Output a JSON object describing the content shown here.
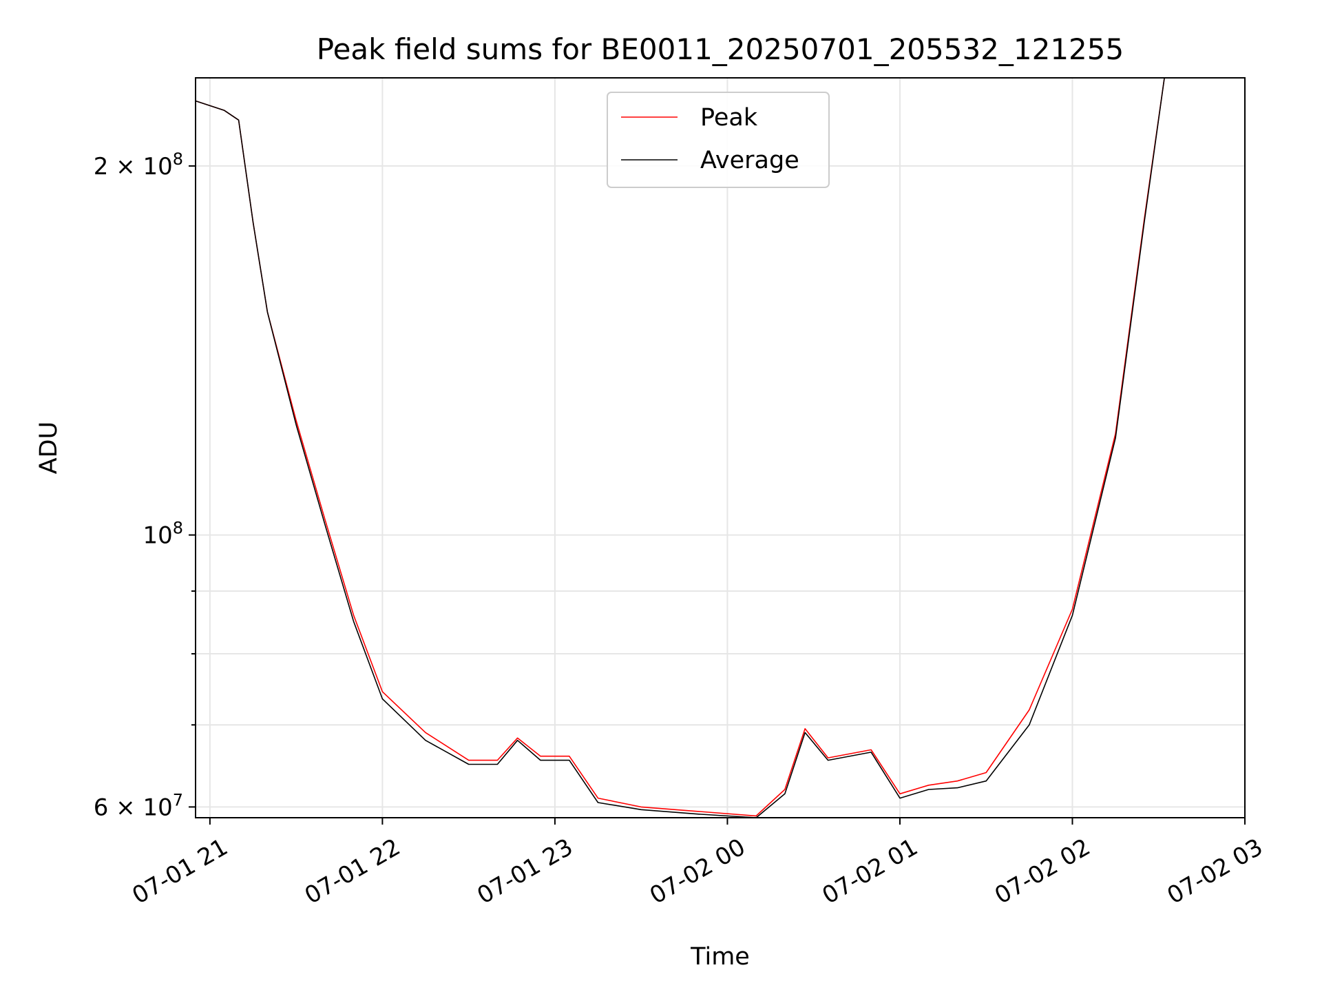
{
  "chart_data": {
    "type": "line",
    "title": "Peak field sums for BE0011_20250701_205532_121255",
    "xlabel": "Time",
    "ylabel": "ADU",
    "y_scale": "log",
    "grid": true,
    "legend_position": "upper center",
    "xlim": [
      "2025-07-01 20:55",
      "2025-07-02 03:00"
    ],
    "ylim": [
      58800000,
      236000000
    ],
    "x_ticks": [
      {
        "value": "2025-07-01 21:00",
        "label": "07-01 21"
      },
      {
        "value": "2025-07-01 22:00",
        "label": "07-01 22"
      },
      {
        "value": "2025-07-01 23:00",
        "label": "07-01 23"
      },
      {
        "value": "2025-07-02 00:00",
        "label": "07-02 00"
      },
      {
        "value": "2025-07-02 01:00",
        "label": "07-02 01"
      },
      {
        "value": "2025-07-02 02:00",
        "label": "07-02 02"
      },
      {
        "value": "2025-07-02 03:00",
        "label": "07-02 03"
      }
    ],
    "y_ticks": [
      {
        "value": 60000000,
        "mantissa": "6",
        "exp": "7"
      },
      {
        "value": 100000000,
        "mantissa": "",
        "exp": "8"
      },
      {
        "value": 200000000,
        "mantissa": "2",
        "exp": "8"
      }
    ],
    "y_minor_ticks": [
      70000000,
      80000000,
      90000000
    ],
    "series": [
      {
        "name": "Peak",
        "color": "#ff0000",
        "points": [
          [
            "2025-07-01 20:55",
            226000000
          ],
          [
            "2025-07-01 21:05",
            222000000
          ],
          [
            "2025-07-01 21:10",
            218000000
          ],
          [
            "2025-07-01 21:15",
            180000000
          ],
          [
            "2025-07-01 21:20",
            152000000
          ],
          [
            "2025-07-01 21:30",
            124000000
          ],
          [
            "2025-07-01 21:40",
            103000000
          ],
          [
            "2025-07-01 21:50",
            86000000
          ],
          [
            "2025-07-01 22:00",
            74500000
          ],
          [
            "2025-07-01 22:15",
            69000000
          ],
          [
            "2025-07-01 22:30",
            65500000
          ],
          [
            "2025-07-01 22:40",
            65500000
          ],
          [
            "2025-07-01 22:47",
            68300000
          ],
          [
            "2025-07-01 22:55",
            66000000
          ],
          [
            "2025-07-01 23:05",
            66000000
          ],
          [
            "2025-07-01 23:15",
            61000000
          ],
          [
            "2025-07-01 23:30",
            60000000
          ],
          [
            "2025-07-01 23:50",
            59500000
          ],
          [
            "2025-07-02 00:10",
            59000000
          ],
          [
            "2025-07-02 00:20",
            62000000
          ],
          [
            "2025-07-02 00:27",
            69500000
          ],
          [
            "2025-07-02 00:35",
            65800000
          ],
          [
            "2025-07-02 00:50",
            66800000
          ],
          [
            "2025-07-02 01:00",
            61500000
          ],
          [
            "2025-07-02 01:10",
            62500000
          ],
          [
            "2025-07-02 01:20",
            63000000
          ],
          [
            "2025-07-02 01:30",
            64000000
          ],
          [
            "2025-07-02 01:45",
            72000000
          ],
          [
            "2025-07-02 02:00",
            87000000
          ],
          [
            "2025-07-02 02:15",
            121000000
          ],
          [
            "2025-07-02 02:25",
            181000000
          ],
          [
            "2025-07-02 02:32",
            236000000
          ]
        ]
      },
      {
        "name": "Average",
        "color": "#000000",
        "points": [
          [
            "2025-07-01 20:55",
            226000000
          ],
          [
            "2025-07-01 21:05",
            222000000
          ],
          [
            "2025-07-01 21:10",
            218000000
          ],
          [
            "2025-07-01 21:15",
            180000000
          ],
          [
            "2025-07-01 21:20",
            152000000
          ],
          [
            "2025-07-01 21:30",
            123000000
          ],
          [
            "2025-07-01 21:40",
            102000000
          ],
          [
            "2025-07-01 21:50",
            85000000
          ],
          [
            "2025-07-01 22:00",
            73500000
          ],
          [
            "2025-07-01 22:15",
            68000000
          ],
          [
            "2025-07-01 22:30",
            65000000
          ],
          [
            "2025-07-01 22:40",
            65000000
          ],
          [
            "2025-07-01 22:47",
            68000000
          ],
          [
            "2025-07-01 22:55",
            65500000
          ],
          [
            "2025-07-01 23:05",
            65500000
          ],
          [
            "2025-07-01 23:15",
            60500000
          ],
          [
            "2025-07-01 23:30",
            59700000
          ],
          [
            "2025-07-01 23:50",
            59200000
          ],
          [
            "2025-07-02 00:10",
            58800000
          ],
          [
            "2025-07-02 00:20",
            61500000
          ],
          [
            "2025-07-02 00:27",
            69000000
          ],
          [
            "2025-07-02 00:35",
            65500000
          ],
          [
            "2025-07-02 00:50",
            66500000
          ],
          [
            "2025-07-02 01:00",
            61000000
          ],
          [
            "2025-07-02 01:10",
            62000000
          ],
          [
            "2025-07-02 01:20",
            62200000
          ],
          [
            "2025-07-02 01:30",
            63000000
          ],
          [
            "2025-07-02 01:45",
            70000000
          ],
          [
            "2025-07-02 02:00",
            86000000
          ],
          [
            "2025-07-02 02:15",
            120000000
          ],
          [
            "2025-07-02 02:25",
            180000000
          ],
          [
            "2025-07-02 02:32",
            236000000
          ]
        ]
      }
    ]
  }
}
